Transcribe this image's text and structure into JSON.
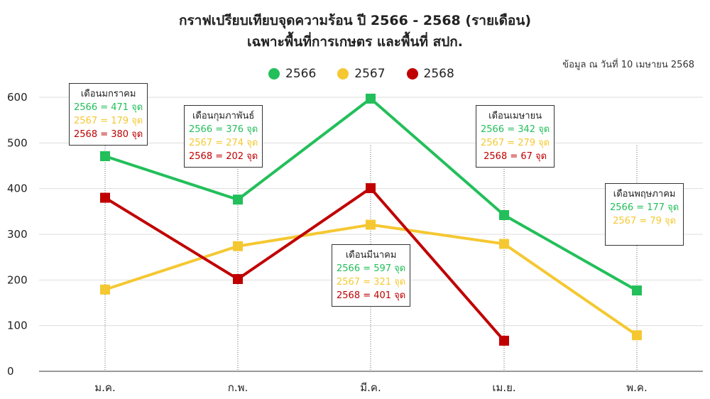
{
  "title_line1": "กราฟเปรียบเทียบจุดความร้อน ปี 2566 - 2568 (รายเดือน)",
  "title_line2": "เฉพาะพื้นที่การเกษตร และพื้นที่ สปก.",
  "note": "ข้อมูล ณ วันที่ 10 เมษายน 2568",
  "colors": {
    "s2566": "#22bf5a",
    "s2567": "#f5c832",
    "s2568": "#c00000"
  },
  "chart_data": {
    "type": "line",
    "categories": [
      "ม.ค.",
      "ก.พ.",
      "มี.ค.",
      "เม.ย.",
      "พ.ค."
    ],
    "ylim": [
      0,
      600
    ],
    "yticks": [
      "0",
      "100",
      "200",
      "300",
      "400",
      "500",
      "600"
    ],
    "grid": true,
    "legend": "top-center",
    "series": [
      {
        "name": "2566",
        "values": [
          471,
          376,
          597,
          342,
          177
        ]
      },
      {
        "name": "2567",
        "values": [
          179,
          274,
          321,
          279,
          79
        ]
      },
      {
        "name": "2568",
        "values": [
          380,
          202,
          401,
          67,
          null
        ]
      }
    ],
    "annotations": [
      {
        "header": "เดือนมกราคม",
        "l1": "2566 = 471 จุด",
        "l2": "2567 = 179 จุด",
        "l3": "2568 = 380 จุด"
      },
      {
        "header": "เดือนกุมภาพันธ์",
        "l1": "2566 = 376 จุด",
        "l2": "2567 = 274 จุด",
        "l3": "2568 = 202 จุด"
      },
      {
        "header": "เดือนมีนาคม",
        "l1": "2566 = 597 จุด",
        "l2": "2567 = 321 จุด",
        "l3": "2568 = 401 จุด"
      },
      {
        "header": "เดือนเมษายน",
        "l1": "2566 = 342 จุด",
        "l2": "2567 = 279 จุด",
        "l3": "2568 = 67 จุด"
      },
      {
        "header": "เดือนพฤษภาคม",
        "l1": "2566 = 177 จุด",
        "l2": "2567 = 79 จุด",
        "l3": ""
      }
    ]
  }
}
